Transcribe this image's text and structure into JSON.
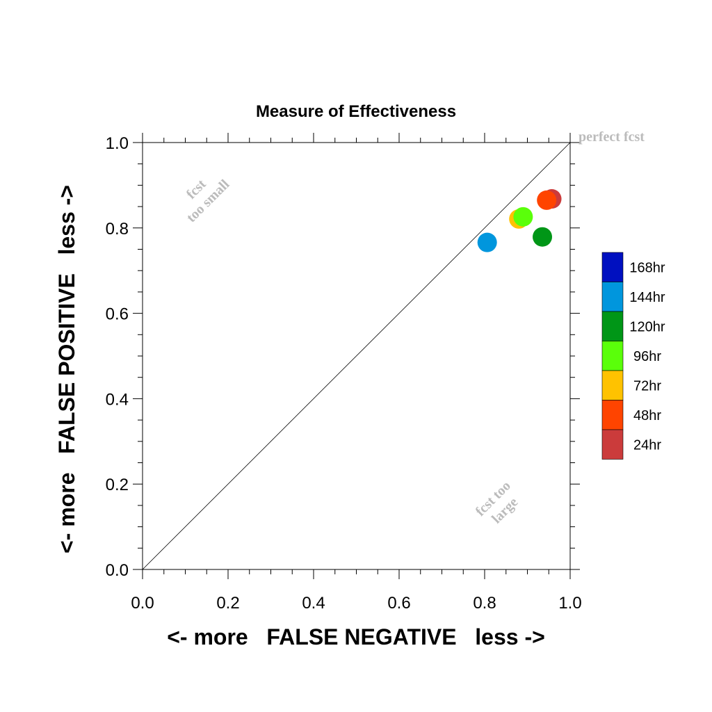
{
  "chart_data": {
    "type": "scatter",
    "title": "Measure of Effectiveness",
    "xlabel": "<- more   FALSE NEGATIVE   less ->",
    "ylabel": "<- more   FALSE POSITIVE   less ->",
    "xlim": [
      0,
      1
    ],
    "ylim": [
      0,
      1
    ],
    "x_ticks": [
      "0.0",
      "0.2",
      "0.4",
      "0.6",
      "0.8",
      "1.0"
    ],
    "y_ticks": [
      "0.0",
      "0.2",
      "0.4",
      "0.6",
      "0.8",
      "1.0"
    ],
    "grid": false,
    "diagonal_reference": true,
    "annotations": {
      "perfect": "perfect fcst",
      "small_line1": "fcst",
      "small_line2": "too small",
      "large_line1": "fcst too",
      "large_line2": "large"
    },
    "legend": {
      "placement": "right",
      "entries": [
        {
          "label": "168hr",
          "color": "#0010c0"
        },
        {
          "label": "144hr",
          "color": "#0096dd"
        },
        {
          "label": "120hr",
          "color": "#009617"
        },
        {
          "label": "96hr",
          "color": "#5aff0a"
        },
        {
          "label": "72hr",
          "color": "#ffc200"
        },
        {
          "label": "48hr",
          "color": "#ff4400"
        },
        {
          "label": "24hr",
          "color": "#cb3b3b"
        }
      ]
    },
    "series": [
      {
        "name": "144hr",
        "color": "#0096dd",
        "x": 0.806,
        "y": 0.766
      },
      {
        "name": "120hr",
        "color": "#009617",
        "x": 0.935,
        "y": 0.779
      },
      {
        "name": "72hr",
        "color": "#ffc200",
        "x": 0.88,
        "y": 0.821
      },
      {
        "name": "96hr",
        "color": "#5aff0a",
        "x": 0.89,
        "y": 0.826
      },
      {
        "name": "24hr",
        "color": "#cb3b3b",
        "x": 0.957,
        "y": 0.868
      },
      {
        "name": "48hr",
        "color": "#ff4400",
        "x": 0.945,
        "y": 0.865
      }
    ]
  }
}
